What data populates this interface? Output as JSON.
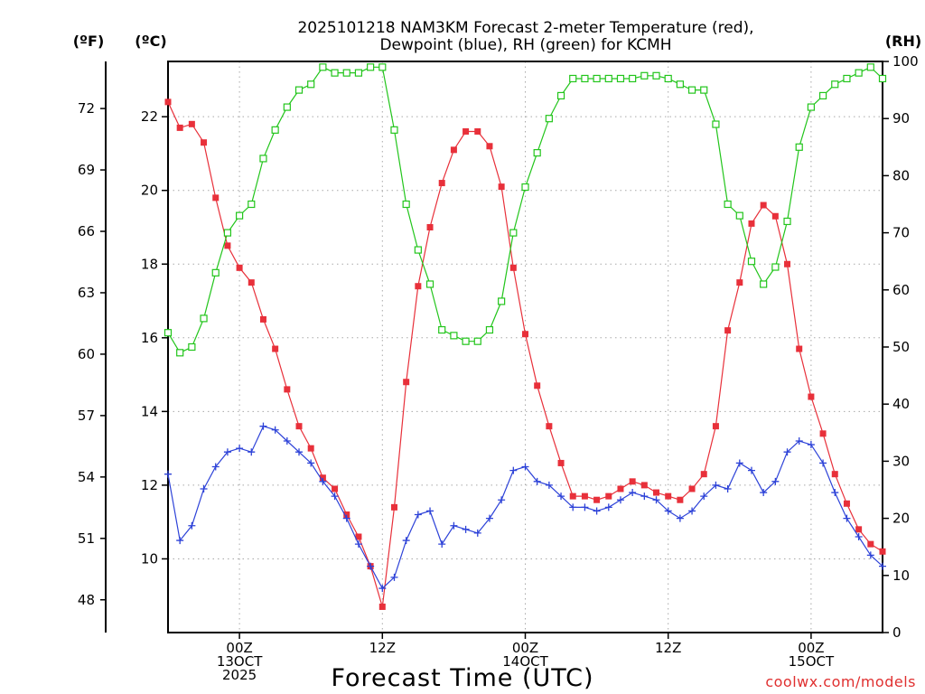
{
  "chart_data": {
    "type": "line",
    "title_line1": "2025101218 NAM3KM Forecast 2-meter Temperature (red),",
    "title_line2": "Dewpoint (blue), RH (green) for KCMH",
    "xlabel": "Forecast Time (UTC)",
    "credit": "coolwx.com/models",
    "left_axis_f_label": "(ºF)",
    "left_axis_c_label": "(ºC)",
    "right_axis_label": "(RH)",
    "grid": true,
    "x_range_hours": [
      0,
      60
    ],
    "y_range_c": [
      8,
      23.5
    ],
    "y_range_rh": [
      0,
      100
    ],
    "x_ticks": [
      {
        "hour": 6,
        "labels": [
          "00Z",
          "13OCT",
          "2025"
        ]
      },
      {
        "hour": 18,
        "labels": [
          "12Z"
        ]
      },
      {
        "hour": 30,
        "labels": [
          "00Z",
          "14OCT"
        ]
      },
      {
        "hour": 42,
        "labels": [
          "12Z"
        ]
      },
      {
        "hour": 54,
        "labels": [
          "00Z",
          "15OCT"
        ]
      }
    ],
    "y_ticks_c": [
      10,
      12,
      14,
      16,
      18,
      20,
      22
    ],
    "y_ticks_f": [
      48,
      51,
      54,
      57,
      60,
      63,
      66,
      69,
      72
    ],
    "y_ticks_rh": [
      0,
      10,
      20,
      30,
      40,
      50,
      60,
      70,
      80,
      90,
      100
    ],
    "series": [
      {
        "name": "Temperature",
        "units": "C",
        "color": "#e8303a",
        "marker": "filled-square",
        "values": [
          22.4,
          21.7,
          21.8,
          21.3,
          19.8,
          18.5,
          17.9,
          17.5,
          16.5,
          15.7,
          14.6,
          13.6,
          13.0,
          12.2,
          11.9,
          11.2,
          10.6,
          9.8,
          8.7,
          11.4,
          14.8,
          17.4,
          19.0,
          20.2,
          21.1,
          21.6,
          21.6,
          21.2,
          20.1,
          17.9,
          16.1,
          14.7,
          13.6,
          12.6,
          11.7,
          11.7,
          11.6,
          11.7,
          11.9,
          12.1,
          12.0,
          11.8,
          11.7,
          11.6,
          11.9,
          12.3,
          13.6,
          16.2,
          17.5,
          19.1,
          19.6,
          19.3,
          18.0,
          15.7,
          14.4,
          13.4,
          12.3,
          11.5,
          10.8,
          10.4,
          10.2
        ]
      },
      {
        "name": "Dewpoint",
        "units": "C",
        "color": "#2d42d8",
        "marker": "plus",
        "values": [
          12.3,
          10.5,
          10.9,
          11.9,
          12.5,
          12.9,
          13.0,
          12.9,
          13.6,
          13.5,
          13.2,
          12.9,
          12.6,
          12.1,
          11.7,
          11.1,
          10.4,
          9.8,
          9.2,
          9.5,
          10.5,
          11.2,
          11.3,
          10.4,
          10.9,
          10.8,
          10.7,
          11.1,
          11.6,
          12.4,
          12.5,
          12.1,
          12.0,
          11.7,
          11.4,
          11.4,
          11.3,
          11.4,
          11.6,
          11.8,
          11.7,
          11.6,
          11.3,
          11.1,
          11.3,
          11.7,
          12.0,
          11.9,
          12.6,
          12.4,
          11.8,
          12.1,
          12.9,
          13.2,
          13.1,
          12.6,
          11.8,
          11.1,
          10.6,
          10.1,
          9.8
        ]
      },
      {
        "name": "RH",
        "units": "%",
        "color": "#22c51b",
        "marker": "open-square",
        "values": [
          52.5,
          49,
          50,
          55,
          63,
          70,
          73,
          75,
          83,
          88,
          92,
          95,
          96,
          99,
          98,
          98,
          98,
          99,
          99,
          88,
          75,
          67,
          61,
          53,
          52,
          51,
          51,
          53,
          58,
          70,
          78,
          84,
          90,
          94,
          97,
          97,
          97,
          97,
          97,
          97,
          97.5,
          97.5,
          97,
          96,
          95,
          95,
          89,
          75,
          73,
          65,
          61,
          64,
          72,
          85,
          92,
          94,
          96,
          97,
          98,
          99,
          97
        ]
      }
    ]
  }
}
